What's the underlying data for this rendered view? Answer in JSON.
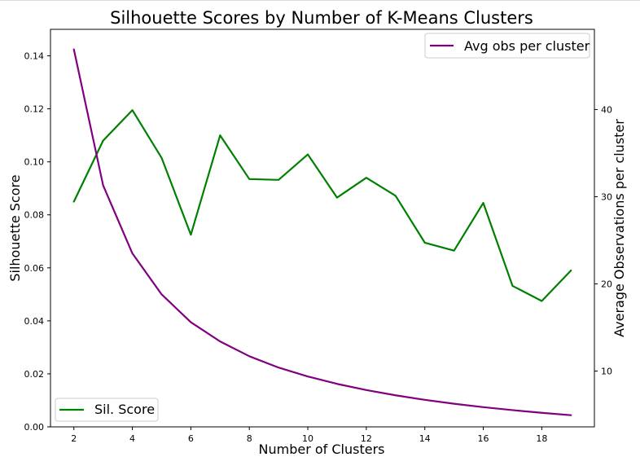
{
  "chart_data": {
    "type": "line",
    "title": "Silhouette Scores by Number of K-Means Clusters",
    "xlabel": "Number of Clusters",
    "ylabel_left": "Silhouette Score",
    "ylabel_right": "Average Observations per cluster",
    "xlim": [
      1.2,
      19.8
    ],
    "ylim_left": [
      0.0,
      0.15
    ],
    "ylim_right": [
      3.6,
      49.2
    ],
    "xticks": [
      2,
      4,
      6,
      8,
      10,
      12,
      14,
      16,
      18
    ],
    "xtick_labels": [
      "2",
      "4",
      "6",
      "8",
      "10",
      "12",
      "14",
      "16",
      "18"
    ],
    "yticks_left": [
      0.0,
      0.02,
      0.04,
      0.06,
      0.08,
      0.1,
      0.12,
      0.14
    ],
    "ytick_labels_left": [
      "0.00",
      "0.02",
      "0.04",
      "0.06",
      "0.08",
      "0.10",
      "0.12",
      "0.14"
    ],
    "yticks_right": [
      10,
      20,
      30,
      40
    ],
    "ytick_labels_right": [
      "10",
      "20",
      "30",
      "40"
    ],
    "x": [
      2,
      3,
      4,
      5,
      6,
      7,
      8,
      9,
      10,
      11,
      12,
      13,
      14,
      15,
      16,
      17,
      18,
      19
    ],
    "series": [
      {
        "name": "Sil. Score",
        "axis": "left",
        "color": "#008000",
        "legend": "lower-left",
        "values": [
          0.085,
          0.108,
          0.1195,
          0.1015,
          0.0725,
          0.11,
          0.0935,
          0.0932,
          0.1028,
          0.0865,
          0.094,
          0.0872,
          0.0695,
          0.0665,
          0.0845,
          0.0532,
          0.0475,
          0.059
        ]
      },
      {
        "name": "Avg obs per cluster",
        "axis": "right",
        "color": "#800080",
        "legend": "upper-right",
        "values": [
          46.9,
          31.3,
          23.5,
          18.8,
          15.6,
          13.4,
          11.7,
          10.4,
          9.38,
          8.53,
          7.82,
          7.22,
          6.7,
          6.25,
          5.86,
          5.52,
          5.21,
          4.94
        ]
      }
    ],
    "grid": false
  }
}
